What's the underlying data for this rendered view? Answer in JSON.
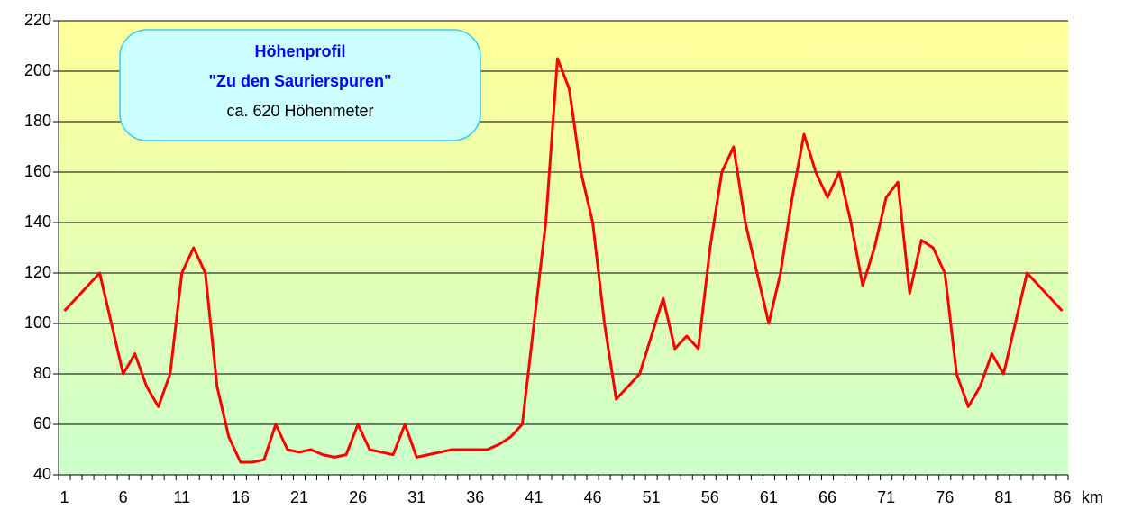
{
  "chart_data": {
    "type": "line",
    "annotation": [
      "Höhenprofil",
      "\"Zu den Saurierspuren\"",
      "ca. 620 Höhenmeter"
    ],
    "x_label": "km",
    "categories": [
      "1",
      null,
      null,
      null,
      null,
      "6",
      null,
      null,
      null,
      null,
      "11",
      null,
      null,
      null,
      null,
      "16",
      null,
      null,
      null,
      null,
      "21",
      null,
      null,
      null,
      null,
      "26",
      null,
      null,
      null,
      null,
      "31",
      null,
      null,
      null,
      null,
      "36",
      null,
      null,
      null,
      null,
      "41",
      null,
      null,
      null,
      null,
      "46",
      null,
      null,
      null,
      null,
      "51",
      null,
      null,
      null,
      null,
      "56",
      null,
      null,
      null,
      null,
      "61",
      null,
      null,
      null,
      null,
      "66",
      null,
      null,
      null,
      null,
      "71",
      null,
      null,
      null,
      null,
      "76",
      null,
      null,
      null,
      null,
      "81",
      null,
      null,
      null,
      null,
      "86"
    ],
    "series": [
      {
        "color": "#ff0000",
        "values": [
          105,
          110,
          115,
          120,
          100,
          80,
          88,
          75,
          67,
          80,
          120,
          130,
          120,
          75,
          55,
          45,
          45,
          46,
          60,
          50,
          49,
          50,
          48,
          47,
          48,
          60,
          50,
          49,
          48,
          60,
          47,
          48,
          49,
          50,
          50,
          50,
          50,
          52,
          55,
          60,
          100,
          140,
          205,
          193,
          160,
          140,
          100,
          70,
          75,
          80,
          95,
          110,
          90,
          95,
          90,
          130,
          160,
          170,
          140,
          120,
          100,
          120,
          150,
          175,
          160,
          150,
          160,
          140,
          115,
          130,
          150,
          156,
          112,
          133,
          130,
          120,
          80,
          67,
          75,
          88,
          80,
          100,
          120,
          115,
          110,
          105
        ]
      }
    ],
    "ylim": [
      40,
      220
    ],
    "yticks": [
      40,
      60,
      80,
      100,
      120,
      140,
      160,
      180,
      200,
      220
    ],
    "grid": true
  }
}
